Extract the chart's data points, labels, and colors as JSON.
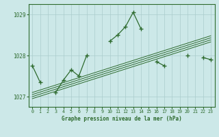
{
  "x": [
    0,
    1,
    2,
    3,
    4,
    5,
    6,
    7,
    8,
    9,
    10,
    11,
    12,
    13,
    14,
    15,
    16,
    17,
    18,
    19,
    20,
    21,
    22,
    23
  ],
  "main_line": [
    1027.75,
    1027.35,
    null,
    1027.1,
    1027.4,
    1027.65,
    1027.5,
    1028.0,
    null,
    null,
    1028.35,
    1028.5,
    1028.7,
    1029.05,
    1028.65,
    null,
    1027.85,
    1027.75,
    null,
    null,
    1028.0,
    null,
    1027.95,
    1027.9
  ],
  "trend_lines": [
    [
      1027.1,
      1027.16,
      1027.22,
      1027.28,
      1027.34,
      1027.4,
      1027.46,
      1027.52,
      1027.58,
      1027.64,
      1027.7,
      1027.76,
      1027.82,
      1027.88,
      1027.94,
      1028.0,
      1028.06,
      1028.12,
      1028.18,
      1028.24,
      1028.3,
      1028.36,
      1028.42,
      1028.48
    ],
    [
      1027.05,
      1027.11,
      1027.17,
      1027.23,
      1027.29,
      1027.35,
      1027.41,
      1027.47,
      1027.53,
      1027.59,
      1027.65,
      1027.71,
      1027.77,
      1027.83,
      1027.89,
      1027.95,
      1028.01,
      1028.07,
      1028.13,
      1028.19,
      1028.25,
      1028.31,
      1028.37,
      1028.43
    ],
    [
      1027.0,
      1027.06,
      1027.12,
      1027.18,
      1027.24,
      1027.3,
      1027.36,
      1027.42,
      1027.48,
      1027.54,
      1027.6,
      1027.66,
      1027.72,
      1027.78,
      1027.84,
      1027.9,
      1027.96,
      1028.02,
      1028.08,
      1028.14,
      1028.2,
      1028.26,
      1028.32,
      1028.38
    ],
    [
      1026.95,
      1027.01,
      1027.07,
      1027.13,
      1027.19,
      1027.25,
      1027.31,
      1027.37,
      1027.43,
      1027.49,
      1027.55,
      1027.61,
      1027.67,
      1027.73,
      1027.79,
      1027.85,
      1027.91,
      1027.97,
      1028.03,
      1028.09,
      1028.15,
      1028.21,
      1028.27,
      1028.33
    ]
  ],
  "ylim": [
    1026.75,
    1029.25
  ],
  "yticks": [
    1027,
    1028,
    1029
  ],
  "xticks": [
    0,
    1,
    2,
    3,
    4,
    5,
    6,
    7,
    8,
    9,
    10,
    11,
    12,
    13,
    14,
    15,
    16,
    17,
    18,
    19,
    20,
    21,
    22,
    23
  ],
  "xlabel": "Graphe pression niveau de la mer (hPa)",
  "line_color": "#2d6a2d",
  "bg_color": "#cce8e8",
  "grid_color": "#aacccc",
  "spine_color": "#2d6a2d"
}
